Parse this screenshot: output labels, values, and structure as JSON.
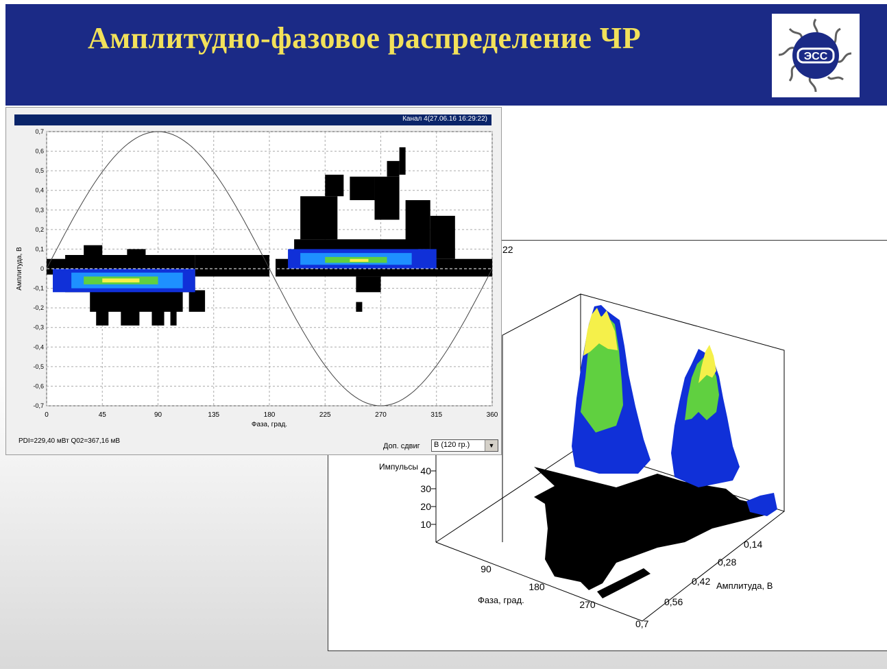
{
  "header": {
    "title": "Амплитудно-фазовое распределение ЧР",
    "logo_text": "ЭСС"
  },
  "colors": {
    "header_bg": "#1b2a86",
    "title": "#f2e15a",
    "caption_bg": "#0a2469",
    "black": "#000000",
    "blue": "#1030d8",
    "cyan": "#1e90ff",
    "green": "#60d040",
    "yellow": "#f5f04a"
  },
  "chart_data": [
    {
      "type": "heatmap",
      "title": "Канал 4(27.06.16 16:29:22)",
      "xlabel": "Фаза, град.",
      "ylabel": "Амплитуда, В",
      "xlim": [
        0,
        360
      ],
      "ylim": [
        -0.7,
        0.7
      ],
      "x_ticks": [
        "0",
        "45",
        "90",
        "135",
        "180",
        "225",
        "270",
        "315",
        "360"
      ],
      "y_ticks": [
        "0,7",
        "0,6",
        "0,5",
        "0,4",
        "0,3",
        "0,2",
        "0,1",
        "0",
        "-0,1",
        "-0,2",
        "-0,3",
        "-0,4",
        "-0,5",
        "-0,6",
        "-0,7"
      ],
      "grid": true,
      "reference_sine": {
        "amplitude": 0.7,
        "period": 360
      },
      "black_envelope": [
        {
          "x": [
            0,
            20
          ],
          "y": [
            -0.03,
            0.05
          ]
        },
        {
          "x": [
            15,
            120
          ],
          "y": [
            -0.12,
            0.07
          ]
        },
        {
          "x": [
            35,
            110
          ],
          "y": [
            -0.22,
            -0.1
          ]
        },
        {
          "x": [
            40,
            50
          ],
          "y": [
            -0.29,
            -0.2
          ]
        },
        {
          "x": [
            60,
            75
          ],
          "y": [
            -0.29,
            -0.2
          ]
        },
        {
          "x": [
            85,
            95
          ],
          "y": [
            -0.29,
            -0.2
          ]
        },
        {
          "x": [
            100,
            105
          ],
          "y": [
            -0.29,
            -0.2
          ]
        },
        {
          "x": [
            30,
            45
          ],
          "y": [
            0.05,
            0.12
          ]
        },
        {
          "x": [
            65,
            80
          ],
          "y": [
            0.05,
            0.1
          ]
        },
        {
          "x": [
            120,
            180
          ],
          "y": [
            -0.04,
            0.07
          ]
        },
        {
          "x": [
            115,
            128
          ],
          "y": [
            -0.22,
            -0.11
          ]
        },
        {
          "x": [
            185,
            360
          ],
          "y": [
            -0.04,
            0.05
          ]
        },
        {
          "x": [
            200,
            300
          ],
          "y": [
            0.02,
            0.15
          ]
        },
        {
          "x": [
            205,
            235
          ],
          "y": [
            0.15,
            0.37
          ]
        },
        {
          "x": [
            225,
            240
          ],
          "y": [
            0.37,
            0.48
          ]
        },
        {
          "x": [
            245,
            265
          ],
          "y": [
            0.35,
            0.47
          ]
        },
        {
          "x": [
            265,
            285
          ],
          "y": [
            0.25,
            0.47
          ]
        },
        {
          "x": [
            275,
            285
          ],
          "y": [
            0.47,
            0.55
          ]
        },
        {
          "x": [
            285,
            290
          ],
          "y": [
            0.48,
            0.62
          ]
        },
        {
          "x": [
            290,
            310
          ],
          "y": [
            0.1,
            0.35
          ]
        },
        {
          "x": [
            310,
            330
          ],
          "y": [
            0.05,
            0.27
          ]
        },
        {
          "x": [
            250,
            270
          ],
          "y": [
            -0.12,
            -0.04
          ]
        },
        {
          "x": [
            250,
            255
          ],
          "y": [
            -0.22,
            -0.17
          ]
        }
      ],
      "color_bands": [
        {
          "color": "blue",
          "x": [
            5,
            120
          ],
          "y": [
            -0.12,
            0.0
          ]
        },
        {
          "color": "cyan",
          "x": [
            20,
            110
          ],
          "y": [
            -0.1,
            -0.02
          ]
        },
        {
          "color": "green",
          "x": [
            30,
            90
          ],
          "y": [
            -0.08,
            -0.04
          ]
        },
        {
          "color": "yellow",
          "x": [
            45,
            75
          ],
          "y": [
            -0.07,
            -0.05
          ]
        },
        {
          "color": "blue",
          "x": [
            195,
            315
          ],
          "y": [
            0.0,
            0.1
          ]
        },
        {
          "color": "cyan",
          "x": [
            205,
            295
          ],
          "y": [
            0.02,
            0.08
          ]
        },
        {
          "color": "green",
          "x": [
            225,
            275
          ],
          "y": [
            0.03,
            0.06
          ]
        },
        {
          "color": "yellow",
          "x": [
            245,
            260
          ],
          "y": [
            0.035,
            0.05
          ]
        }
      ],
      "stats_text": "PDI=229,40 мВт Q02=367,16 мВ",
      "phase_shift_label": "Доп. сдвиг",
      "phase_shift_value": "В (120 гр.)"
    },
    {
      "type": "surface3d",
      "corner_text": "22",
      "z_label": "Импульсы",
      "z_ticks": [
        "10",
        "20",
        "30",
        "40"
      ],
      "z_tick_partial": "30",
      "x_label": "Фаза, град.",
      "x_ticks": [
        "90",
        "180",
        "270"
      ],
      "y_label": "Амплитуда, В",
      "y_ticks": [
        "0,14",
        "0,28",
        "0,42",
        "0,56",
        "0,7"
      ],
      "peaks": [
        {
          "phase": 90,
          "amplitude": 0.07,
          "height_rel": 1.0
        },
        {
          "phase": 270,
          "amplitude": 0.07,
          "height_rel": 0.82
        }
      ]
    }
  ]
}
